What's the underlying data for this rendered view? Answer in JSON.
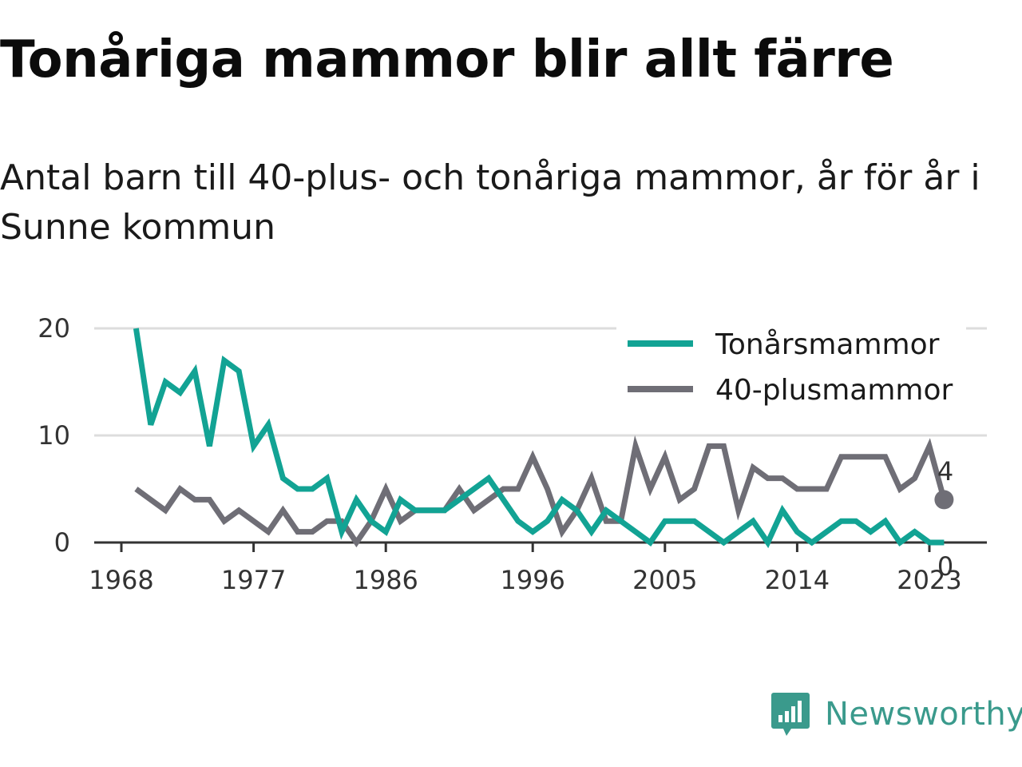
{
  "title": "Tonåriga mammor blir allt färre",
  "subtitle": "Antal barn till 40-plus- och tonåriga mammor, år för år i Sunne kommun",
  "brand": {
    "name": "Newsworthy",
    "icon": "newsworthy-logo-icon"
  },
  "colors": {
    "teen": "#12a394",
    "forty": "#6f6e76",
    "grid": "#dddddd",
    "axis": "#333333"
  },
  "chart_data": {
    "type": "line",
    "title": "",
    "xlabel": "",
    "ylabel": "",
    "ylim": [
      0,
      20
    ],
    "xlim": [
      1968,
      2024
    ],
    "yticks": [
      0,
      10,
      20
    ],
    "xticks": [
      1968,
      1977,
      1986,
      1996,
      2005,
      2014,
      2023
    ],
    "grid": true,
    "legend_position": "top-right",
    "x": [
      1969,
      1970,
      1971,
      1972,
      1973,
      1974,
      1975,
      1976,
      1977,
      1978,
      1979,
      1980,
      1981,
      1982,
      1983,
      1984,
      1985,
      1986,
      1987,
      1988,
      1989,
      1990,
      1991,
      1992,
      1993,
      1994,
      1995,
      1996,
      1997,
      1998,
      1999,
      2000,
      2001,
      2002,
      2003,
      2004,
      2005,
      2006,
      2007,
      2008,
      2009,
      2010,
      2011,
      2012,
      2013,
      2014,
      2015,
      2016,
      2017,
      2018,
      2019,
      2020,
      2021,
      2022,
      2023,
      2024
    ],
    "series": [
      {
        "name": "Tonårsmammor",
        "color": "#12a394",
        "values": [
          20,
          11,
          15,
          14,
          16,
          9,
          17,
          16,
          9,
          11,
          6,
          5,
          5,
          6,
          1,
          4,
          2,
          1,
          4,
          3,
          3,
          3,
          4,
          5,
          6,
          4,
          2,
          1,
          2,
          4,
          3,
          1,
          3,
          2,
          1,
          0,
          2,
          2,
          2,
          1,
          0,
          1,
          2,
          0,
          3,
          1,
          0,
          1,
          2,
          2,
          1,
          2,
          0,
          1,
          0,
          0
        ],
        "end_label": "0"
      },
      {
        "name": "40-plusmammor",
        "color": "#6f6e76",
        "values": [
          5,
          4,
          3,
          5,
          4,
          4,
          2,
          3,
          2,
          1,
          3,
          1,
          1,
          2,
          2,
          0,
          2,
          5,
          2,
          3,
          3,
          3,
          5,
          3,
          4,
          5,
          5,
          8,
          5,
          1,
          3,
          6,
          2,
          2,
          9,
          5,
          8,
          4,
          5,
          9,
          9,
          3,
          7,
          6,
          6,
          5,
          5,
          5,
          8,
          8,
          8,
          8,
          5,
          6,
          9,
          4
        ],
        "end_label": "4"
      }
    ]
  }
}
